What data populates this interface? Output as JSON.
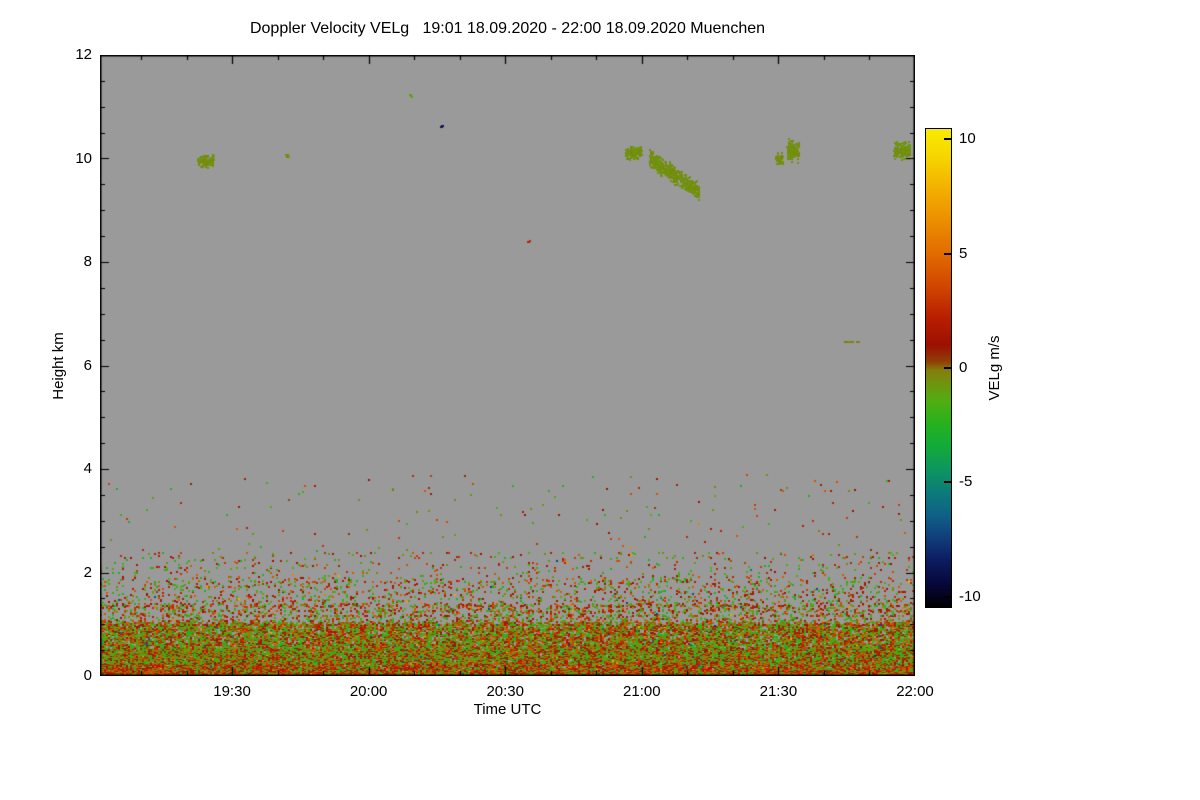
{
  "chart_data": {
    "type": "heatmap",
    "title": "Doppler Velocity VELg   19:01 18.09.2020 - 22:00 18.09.2020 Muenchen",
    "location": "Muenchen",
    "date": "18.09.2020",
    "xlabel": "Time UTC",
    "ylabel": "Height km",
    "time_start": "19:01",
    "time_end": "22:00",
    "x_ticks": [
      "19:30",
      "20:00",
      "20:30",
      "21:00",
      "21:30",
      "22:00"
    ],
    "x_minor_step_min": 10,
    "y_range": [
      0,
      12
    ],
    "y_ticks": [
      0,
      2,
      4,
      6,
      8,
      10,
      12
    ],
    "y_minor_step": 0.5,
    "background_color": "#9a9a9a",
    "grid": false,
    "colorbar": {
      "label": "VELg m/s",
      "range": [
        -10.5,
        10.5
      ],
      "ticks": [
        10,
        5,
        0,
        -5,
        -10
      ],
      "stops": [
        [
          -10.5,
          "#000000"
        ],
        [
          -9.5,
          "#07073a"
        ],
        [
          -8.5,
          "#0c1a5e"
        ],
        [
          -7.5,
          "#103d7a"
        ],
        [
          -6.5,
          "#0f5f86"
        ],
        [
          -5.5,
          "#0c7a7a"
        ],
        [
          -4.5,
          "#0d9560"
        ],
        [
          -3.5,
          "#12a93c"
        ],
        [
          -2.5,
          "#23b21f"
        ],
        [
          -1.5,
          "#4fae12"
        ],
        [
          -0.7,
          "#6f9410"
        ],
        [
          -0.1,
          "#857d0c"
        ],
        [
          0.3,
          "#8f3d06"
        ],
        [
          1,
          "#9c1002"
        ],
        [
          2.2,
          "#b81e00"
        ],
        [
          3.5,
          "#cf4400"
        ],
        [
          5,
          "#e16b00"
        ],
        [
          6.5,
          "#ec8f00"
        ],
        [
          8,
          "#f3b300"
        ],
        [
          9.3,
          "#f6d600"
        ],
        [
          10.5,
          "#f9eb00"
        ]
      ]
    },
    "features": {
      "clouds": [
        {
          "time": "19:24",
          "height_km": 9.95,
          "duration_min": 3.5,
          "depth_km": 0.3,
          "velocity": -0.6
        },
        {
          "time": "19:42",
          "height_km": 10.05,
          "duration_min": 0.8,
          "depth_km": 0.08,
          "velocity": -0.6
        },
        {
          "time": "20:09",
          "height_km": 11.2,
          "duration_min": 0.6,
          "depth_km": 0.06,
          "velocity": -1.2
        },
        {
          "time": "20:16",
          "height_km": 10.62,
          "duration_min": 0.5,
          "depth_km": 0.05,
          "velocity": -9
        },
        {
          "time": "20:35",
          "height_km": 8.4,
          "duration_min": 0.6,
          "depth_km": 0.06,
          "velocity": 2.5
        },
        {
          "time": "20:58",
          "height_km": 10.1,
          "duration_min": 3.5,
          "depth_km": 0.3,
          "velocity": -0.6
        },
        {
          "time": "21:07",
          "height_km": 10.0,
          "height_end_km": 9.35,
          "duration_min": 11,
          "depth_km": 0.42,
          "velocity": -0.6
        },
        {
          "time": "21:30",
          "height_km": 10.0,
          "duration_min": 1.5,
          "depth_km": 0.3,
          "velocity": -0.6
        },
        {
          "time": "21:33",
          "height_km": 10.15,
          "duration_min": 2.5,
          "depth_km": 0.5,
          "velocity": -0.6
        },
        {
          "time": "21:57",
          "height_km": 10.15,
          "duration_min": 3.5,
          "depth_km": 0.4,
          "velocity": -0.6
        }
      ],
      "thin_layers": [
        {
          "height_km": 1.03,
          "coverage": 0.45,
          "velocity": 0.0
        },
        {
          "height_km": 6.45,
          "t0": "21:44",
          "t1": "21:48",
          "coverage": 0.9,
          "velocity": -0.2
        }
      ],
      "boundary_layer": {
        "dense_top_km": 1.0,
        "speckle_top_km": 2.4,
        "sparse_top_km": 3.9,
        "velocity_range_positive": [
          0.2,
          4.5
        ],
        "velocity_range_negative": [
          -3.0,
          -0.2
        ]
      }
    }
  }
}
